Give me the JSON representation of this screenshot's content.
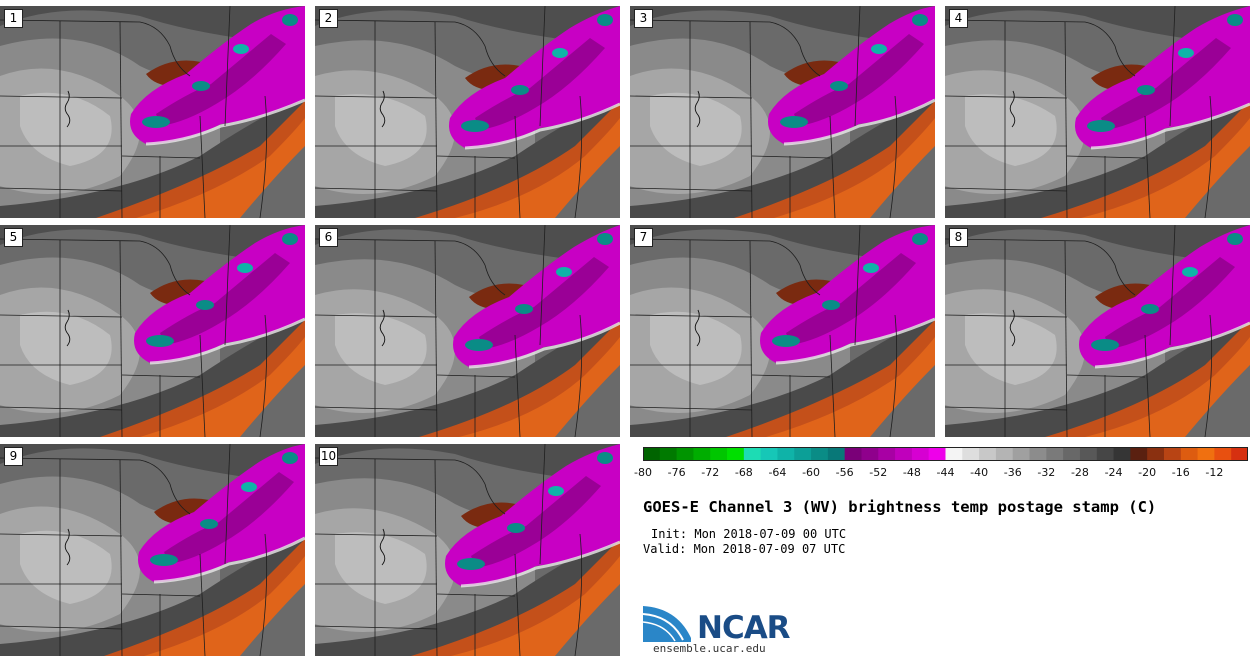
{
  "panels": [
    {
      "label": "1"
    },
    {
      "label": "2"
    },
    {
      "label": "3"
    },
    {
      "label": "4"
    },
    {
      "label": "5"
    },
    {
      "label": "6"
    },
    {
      "label": "7"
    },
    {
      "label": "8"
    },
    {
      "label": "9"
    },
    {
      "label": "10"
    }
  ],
  "colorbar": {
    "bins": [
      {
        "value": -80,
        "color": "#006400"
      },
      {
        "value": -78,
        "color": "#007a00"
      },
      {
        "value": -76,
        "color": "#009400"
      },
      {
        "value": -74,
        "color": "#00ad00"
      },
      {
        "value": -72,
        "color": "#00c600"
      },
      {
        "value": -70,
        "color": "#00df00"
      },
      {
        "value": -68,
        "color": "#1ddcb4"
      },
      {
        "value": -66,
        "color": "#16c7b7"
      },
      {
        "value": -64,
        "color": "#0fb3a8"
      },
      {
        "value": -62,
        "color": "#0c9f97"
      },
      {
        "value": -60,
        "color": "#0a8c86"
      },
      {
        "value": -58,
        "color": "#087878"
      },
      {
        "value": -56,
        "color": "#7a0078"
      },
      {
        "value": -54,
        "color": "#8f008c"
      },
      {
        "value": -52,
        "color": "#a800a4"
      },
      {
        "value": -50,
        "color": "#c000bc"
      },
      {
        "value": -48,
        "color": "#d600d2"
      },
      {
        "value": -46,
        "color": "#ee00ea"
      },
      {
        "value": -44,
        "color": "#f4f4f4"
      },
      {
        "value": -42,
        "color": "#dedede"
      },
      {
        "value": -40,
        "color": "#c8c8c8"
      },
      {
        "value": -38,
        "color": "#b4b4b4"
      },
      {
        "value": -36,
        "color": "#a0a0a0"
      },
      {
        "value": -34,
        "color": "#8c8c8c"
      },
      {
        "value": -32,
        "color": "#7a7a7a"
      },
      {
        "value": -30,
        "color": "#686868"
      },
      {
        "value": -28,
        "color": "#585858"
      },
      {
        "value": -26,
        "color": "#464646"
      },
      {
        "value": -24,
        "color": "#353535"
      },
      {
        "value": -22,
        "color": "#5a2010"
      },
      {
        "value": -20,
        "color": "#8a3010"
      },
      {
        "value": -18,
        "color": "#b84414"
      },
      {
        "value": -16,
        "color": "#dd5c10"
      },
      {
        "value": -14,
        "color": "#f07010"
      },
      {
        "value": -12,
        "color": "#e85010"
      },
      {
        "value": -10,
        "color": "#d63010"
      }
    ],
    "tick_labels": [
      "-80",
      "-76",
      "-72",
      "-68",
      "-64",
      "-60",
      "-56",
      "-52",
      "-48",
      "-44",
      "-40",
      "-36",
      "-32",
      "-28",
      "-24",
      "-20",
      "-16",
      "-12"
    ]
  },
  "title": "GOES-E Channel 3 (WV) brightness temp postage stamp (C)",
  "init": "Init: Mon 2018-07-09 00 UTC",
  "valid": "Valid: Mon 2018-07-09 07 UTC",
  "logo": {
    "text": "NCAR",
    "url": "ensemble.ucar.edu",
    "color": "#1a4c86",
    "arc_color": "#2a86c8"
  }
}
